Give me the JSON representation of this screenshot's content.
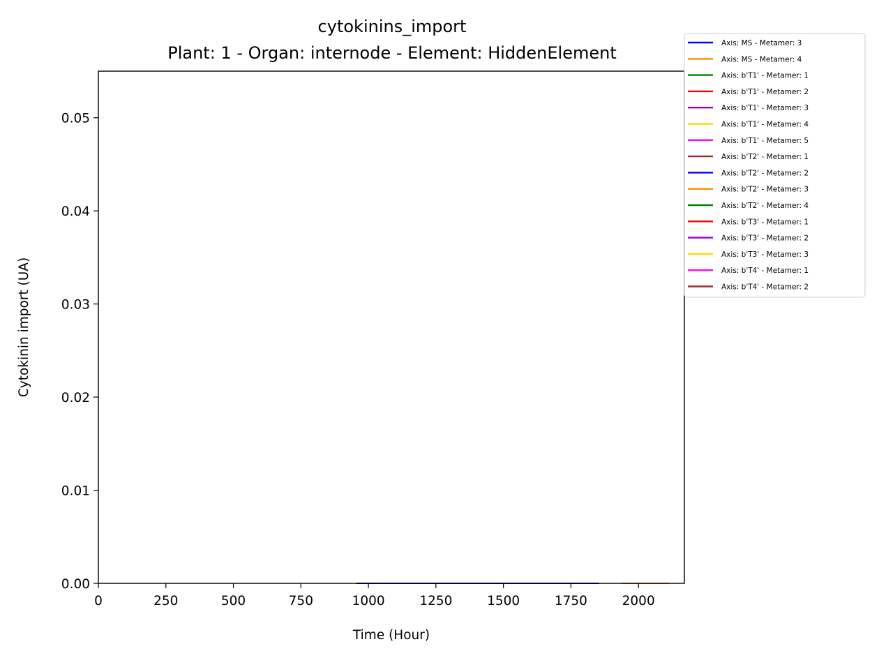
{
  "chart_data": {
    "type": "line",
    "title": "cytokinins_import",
    "subtitle": "Plant: 1 - Organ: internode - Element: HiddenElement",
    "xlabel": "Time (Hour)",
    "ylabel": "Cytokinin import (UA)",
    "xlim": [
      0,
      2170
    ],
    "ylim": [
      0,
      0.055
    ],
    "xticks": [
      0,
      250,
      500,
      750,
      1000,
      1250,
      1500,
      1750,
      2000
    ],
    "yticks": [
      0.0,
      0.01,
      0.02,
      0.03,
      0.04,
      0.05
    ],
    "ytick_labels": [
      "0.00",
      "0.01",
      "0.02",
      "0.03",
      "0.04",
      "0.05"
    ],
    "grid": false,
    "legend_position": "outside-top-right",
    "series": [
      {
        "name": "Axis: MS - Metamer: 3",
        "color": "#0000ff",
        "x": [
          955,
          1855
        ],
        "y": [
          0,
          0
        ]
      },
      {
        "name": "Axis: MS - Metamer: 4",
        "color": "#ff8c00",
        "x": [
          1935,
          2115
        ],
        "y": [
          0,
          0
        ]
      },
      {
        "name": "Axis: b'T1' - Metamer: 1",
        "color": "#008000",
        "x": [],
        "y": []
      },
      {
        "name": "Axis: b'T1' - Metamer: 2",
        "color": "#ff0000",
        "x": [],
        "y": []
      },
      {
        "name": "Axis: b'T1' - Metamer: 3",
        "color": "#9400d3",
        "x": [],
        "y": []
      },
      {
        "name": "Axis: b'T1' - Metamer: 4",
        "color": "#ffd700",
        "x": [],
        "y": []
      },
      {
        "name": "Axis: b'T1' - Metamer: 5",
        "color": "#ff00ff",
        "x": [],
        "y": []
      },
      {
        "name": "Axis: b'T2' - Metamer: 1",
        "color": "#a52a2a",
        "x": [],
        "y": []
      },
      {
        "name": "Axis: b'T2' - Metamer: 2",
        "color": "#0000ff",
        "x": [],
        "y": []
      },
      {
        "name": "Axis: b'T2' - Metamer: 3",
        "color": "#ff8c00",
        "x": [],
        "y": []
      },
      {
        "name": "Axis: b'T2' - Metamer: 4",
        "color": "#008000",
        "x": [],
        "y": []
      },
      {
        "name": "Axis: b'T3' - Metamer: 1",
        "color": "#ff0000",
        "x": [],
        "y": []
      },
      {
        "name": "Axis: b'T3' - Metamer: 2",
        "color": "#9400d3",
        "x": [],
        "y": []
      },
      {
        "name": "Axis: b'T3' - Metamer: 3",
        "color": "#ffd700",
        "x": [],
        "y": []
      },
      {
        "name": "Axis: b'T4' - Metamer: 1",
        "color": "#ff00ff",
        "x": [],
        "y": []
      },
      {
        "name": "Axis: b'T4' - Metamer: 2",
        "color": "#a52a2a",
        "x": [],
        "y": []
      }
    ]
  }
}
